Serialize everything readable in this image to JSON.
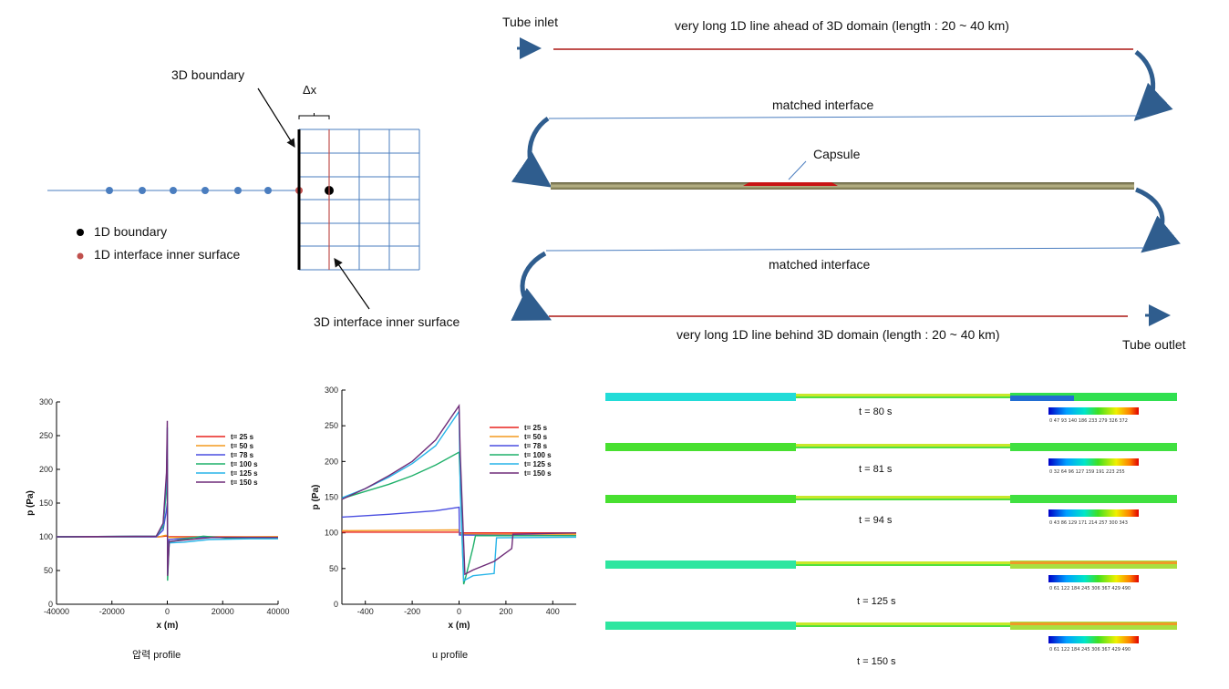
{
  "schematic": {
    "boundary_label": "3D boundary",
    "dx_label": "Δx",
    "legend_black": "1D boundary",
    "legend_red": "1D interface inner surface",
    "inner_surface_label": "3D interface inner surface"
  },
  "tube": {
    "inlet": "Tube inlet",
    "outlet": "Tube outlet",
    "top_line_label": "very long 1D line ahead of 3D domain (length : 20 ~ 40 km)",
    "matched1": "matched interface",
    "capsule": "Capsule",
    "matched2": "matched interface",
    "bottom_line_label": "very long 1D line behind  3D domain (length : 20 ~ 40 km)"
  },
  "pressure_plot": {
    "caption": "압력 profile",
    "chart_data": {
      "type": "line",
      "xlabel": "x (m)",
      "ylabel": "p (Pa)",
      "xlim": [
        -40000,
        40000
      ],
      "ylim": [
        0,
        300
      ],
      "xticks": [
        -40000,
        -20000,
        0,
        20000,
        40000
      ],
      "yticks": [
        0,
        50,
        100,
        150,
        200,
        250,
        300
      ],
      "series": [
        {
          "name": "t= 25 s",
          "color": "#e8231f",
          "points": [
            [
              -40000,
              100
            ],
            [
              -3000,
              100
            ],
            [
              -800,
              101
            ],
            [
              0,
              101
            ],
            [
              800,
              100
            ],
            [
              40000,
              100
            ]
          ]
        },
        {
          "name": "t= 50 s",
          "color": "#f39a1e",
          "points": [
            [
              -40000,
              100
            ],
            [
              -3000,
              100
            ],
            [
              -800,
              102
            ],
            [
              0,
              102
            ],
            [
              800,
              99
            ],
            [
              40000,
              100
            ]
          ]
        },
        {
          "name": "t= 78 s",
          "color": "#4a4ee0",
          "points": [
            [
              -40000,
              100
            ],
            [
              -4000,
              100
            ],
            [
              -1500,
              110
            ],
            [
              -300,
              140
            ],
            [
              0,
              150
            ],
            [
              100,
              60
            ],
            [
              600,
              96
            ],
            [
              10000,
              99
            ],
            [
              40000,
              99
            ]
          ]
        },
        {
          "name": "t= 100 s",
          "color": "#1fb06a",
          "points": [
            [
              -40000,
              100
            ],
            [
              -4000,
              101
            ],
            [
              -1500,
              115
            ],
            [
              -300,
              170
            ],
            [
              0,
              215
            ],
            [
              100,
              35
            ],
            [
              700,
              92
            ],
            [
              5000,
              96
            ],
            [
              13000,
              101
            ],
            [
              22000,
              98
            ],
            [
              40000,
              99
            ]
          ]
        },
        {
          "name": "t= 125 s",
          "color": "#27b4e8",
          "points": [
            [
              -40000,
              100
            ],
            [
              -4000,
              101
            ],
            [
              -1500,
              118
            ],
            [
              -300,
              185
            ],
            [
              0,
              262
            ],
            [
              100,
              45
            ],
            [
              700,
              91
            ],
            [
              6000,
              92
            ],
            [
              15000,
              96
            ],
            [
              30000,
              97
            ],
            [
              40000,
              97
            ]
          ]
        },
        {
          "name": "t= 150 s",
          "color": "#6e2c78",
          "points": [
            [
              -40000,
              100
            ],
            [
              -4000,
              101
            ],
            [
              -1500,
              120
            ],
            [
              -300,
              195
            ],
            [
              0,
              272
            ],
            [
              100,
              42
            ],
            [
              700,
              93
            ],
            [
              8000,
              96
            ],
            [
              16000,
              99
            ],
            [
              30000,
              99
            ],
            [
              40000,
              99
            ]
          ]
        }
      ]
    }
  },
  "velocity_plot": {
    "caption": "u profile",
    "chart_data": {
      "type": "line",
      "xlabel": "x (m)",
      "ylabel": "p (Pa)",
      "xlim": [
        -500,
        500
      ],
      "ylim": [
        0,
        300
      ],
      "xticks": [
        -400,
        -200,
        0,
        200,
        400
      ],
      "yticks": [
        0,
        50,
        100,
        150,
        200,
        250,
        300
      ],
      "series": [
        {
          "name": "t= 25 s",
          "color": "#e8231f",
          "points": [
            [
              -500,
              101
            ],
            [
              0,
              101
            ],
            [
              1,
              100
            ],
            [
              500,
              100
            ]
          ]
        },
        {
          "name": "t= 50 s",
          "color": "#f39a1e",
          "points": [
            [
              -500,
              103
            ],
            [
              0,
              104
            ],
            [
              1,
              98
            ],
            [
              500,
              98
            ]
          ]
        },
        {
          "name": "t= 78 s",
          "color": "#4a4ee0",
          "points": [
            [
              -500,
              122
            ],
            [
              -300,
              126
            ],
            [
              -100,
              131
            ],
            [
              0,
              136
            ],
            [
              2,
              97
            ],
            [
              500,
              96
            ]
          ]
        },
        {
          "name": "t= 100 s",
          "color": "#1fb06a",
          "points": [
            [
              -500,
              148
            ],
            [
              -400,
              158
            ],
            [
              -300,
              168
            ],
            [
              -200,
              180
            ],
            [
              -100,
              195
            ],
            [
              0,
              213
            ],
            [
              5,
              175
            ],
            [
              20,
              28
            ],
            [
              30,
              40
            ],
            [
              60,
              80
            ],
            [
              70,
              96
            ],
            [
              500,
              96
            ]
          ]
        },
        {
          "name": "t= 125 s",
          "color": "#27b4e8",
          "points": [
            [
              -500,
              149
            ],
            [
              -400,
              162
            ],
            [
              -300,
              178
            ],
            [
              -200,
              197
            ],
            [
              -100,
              222
            ],
            [
              0,
              270
            ],
            [
              5,
              160
            ],
            [
              20,
              33
            ],
            [
              60,
              40
            ],
            [
              150,
              43
            ],
            [
              160,
              93
            ],
            [
              500,
              94
            ]
          ]
        },
        {
          "name": "t= 150 s",
          "color": "#6e2c78",
          "points": [
            [
              -500,
              147
            ],
            [
              -400,
              162
            ],
            [
              -300,
              180
            ],
            [
              -200,
              200
            ],
            [
              -100,
              230
            ],
            [
              0,
              278
            ],
            [
              5,
              210
            ],
            [
              25,
              42
            ],
            [
              60,
              48
            ],
            [
              150,
              60
            ],
            [
              225,
              78
            ],
            [
              230,
              98
            ],
            [
              500,
              100
            ]
          ]
        }
      ]
    }
  },
  "contours": [
    {
      "time": "t =  80 s",
      "ticks": "0   47   93  140  186  233  279  326  372"
    },
    {
      "time": "t =  81 s",
      "ticks": "0   32   64   96  127  159  191  223  255"
    },
    {
      "time": "t =  94 s",
      "ticks": "0   43   86  129  171  214  257  300  343"
    },
    {
      "time": "t =  125 s",
      "ticks": "0   61  122  184  245  306  367  429  490"
    },
    {
      "time": "t =  150 s",
      "ticks": "0   61  122  184  245  306  367  429  490"
    }
  ],
  "colors": {
    "line_blue": "#4a7dbf",
    "line_red": "#c0504d",
    "arrow_blue": "#2f5d8e"
  }
}
